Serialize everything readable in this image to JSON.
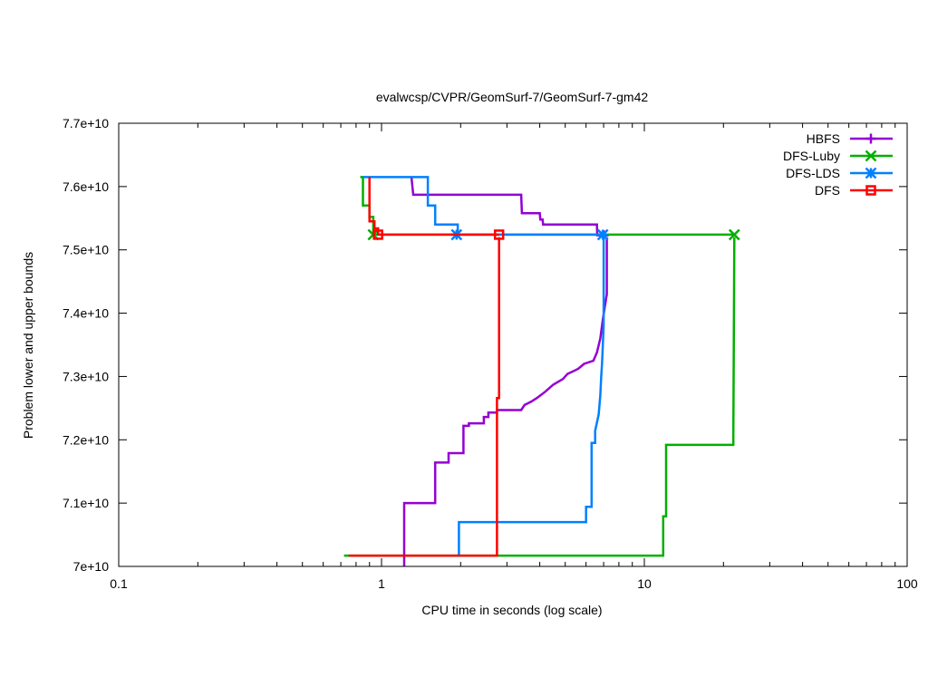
{
  "chart_data": {
    "type": "line",
    "title": "evalwcsp/CVPR/GeomSurf-7/GeomSurf-7-gm42",
    "xlabel": "CPU time in seconds (log scale)",
    "ylabel": "Problem lower and upper bounds",
    "xscale": "log",
    "xlim": [
      0.1,
      100
    ],
    "ylim": [
      70000000000,
      77000000000
    ],
    "xticks": [
      {
        "value": 0.1,
        "label": "0.1"
      },
      {
        "value": 1,
        "label": "1"
      },
      {
        "value": 10,
        "label": "10"
      },
      {
        "value": 100,
        "label": "100"
      }
    ],
    "yticks": [
      {
        "value": 70000000000,
        "label": "7e+10"
      },
      {
        "value": 71000000000,
        "label": "7.1e+10"
      },
      {
        "value": 72000000000,
        "label": "7.2e+10"
      },
      {
        "value": 73000000000,
        "label": "7.3e+10"
      },
      {
        "value": 74000000000,
        "label": "7.4e+10"
      },
      {
        "value": 75000000000,
        "label": "7.5e+10"
      },
      {
        "value": 76000000000,
        "label": "7.6e+10"
      },
      {
        "value": 77000000000,
        "label": "7.7e+10"
      }
    ],
    "legend_position": "top-right",
    "grid": false,
    "series": [
      {
        "name": "HBFS",
        "color": "#9400d3",
        "marker": "plus",
        "upper": [
          [
            1.3,
            76150000000
          ],
          [
            1.32,
            75870000000
          ],
          [
            3.4,
            75870000000
          ],
          [
            3.42,
            75580000000
          ],
          [
            4.0,
            75580000000
          ],
          [
            4.02,
            75480000000
          ],
          [
            4.1,
            75480000000
          ],
          [
            4.12,
            75400000000
          ],
          [
            6.6,
            75400000000
          ],
          [
            6.62,
            75230000000
          ],
          [
            7.0,
            75230000000
          ]
        ],
        "lower": [
          [
            1.22,
            70000000000
          ],
          [
            1.22,
            71000000000
          ],
          [
            1.6,
            71000000000
          ],
          [
            1.6,
            71640000000
          ],
          [
            1.8,
            71640000000
          ],
          [
            1.8,
            71790000000
          ],
          [
            2.05,
            71790000000
          ],
          [
            2.05,
            72220000000
          ],
          [
            2.15,
            72220000000
          ],
          [
            2.15,
            72260000000
          ],
          [
            2.45,
            72260000000
          ],
          [
            2.45,
            72360000000
          ],
          [
            2.55,
            72360000000
          ],
          [
            2.55,
            72430000000
          ],
          [
            2.75,
            72430000000
          ],
          [
            2.75,
            72470000000
          ],
          [
            3.4,
            72470000000
          ],
          [
            3.5,
            72550000000
          ],
          [
            3.7,
            72600000000
          ],
          [
            3.9,
            72660000000
          ],
          [
            4.2,
            72760000000
          ],
          [
            4.5,
            72870000000
          ],
          [
            4.9,
            72960000000
          ],
          [
            5.1,
            73040000000
          ],
          [
            5.6,
            73120000000
          ],
          [
            5.9,
            73200000000
          ],
          [
            6.4,
            73250000000
          ],
          [
            6.6,
            73380000000
          ],
          [
            6.8,
            73600000000
          ],
          [
            6.95,
            73900000000
          ],
          [
            7.1,
            74150000000
          ],
          [
            7.2,
            74300000000
          ],
          [
            7.2,
            75200000000
          ]
        ],
        "marker_points": [
          [
            7.0,
            75230000000
          ]
        ]
      },
      {
        "name": "DFS-Luby",
        "color": "#00b000",
        "marker": "cross",
        "upper": [
          [
            0.83,
            76150000000
          ],
          [
            0.85,
            76150000000
          ],
          [
            0.85,
            75700000000
          ],
          [
            0.9,
            75700000000
          ],
          [
            0.9,
            75520000000
          ],
          [
            0.93,
            75520000000
          ],
          [
            0.93,
            75240000000
          ],
          [
            22,
            75240000000
          ]
        ],
        "lower": [
          [
            0.72,
            70170000000
          ],
          [
            11.8,
            70170000000
          ],
          [
            11.8,
            70790000000
          ],
          [
            12.1,
            70790000000
          ],
          [
            12.1,
            71920000000
          ],
          [
            21.8,
            71920000000
          ],
          [
            21.8,
            72050000000
          ],
          [
            22,
            75200000000
          ]
        ],
        "marker_points": [
          [
            0.93,
            75240000000
          ],
          [
            22,
            75240000000
          ]
        ]
      },
      {
        "name": "DFS-LDS",
        "color": "#0080ff",
        "marker": "star",
        "upper": [
          [
            0.85,
            76150000000
          ],
          [
            1.5,
            76150000000
          ],
          [
            1.5,
            75700000000
          ],
          [
            1.6,
            75700000000
          ],
          [
            1.6,
            75400000000
          ],
          [
            1.95,
            75400000000
          ],
          [
            1.95,
            75240000000
          ],
          [
            7.0,
            75240000000
          ]
        ],
        "lower": [
          [
            1.97,
            70170000000
          ],
          [
            1.97,
            70700000000
          ],
          [
            6.0,
            70700000000
          ],
          [
            6.0,
            70940000000
          ],
          [
            6.3,
            70940000000
          ],
          [
            6.3,
            71950000000
          ],
          [
            6.5,
            71950000000
          ],
          [
            6.5,
            72140000000
          ],
          [
            6.7,
            72400000000
          ],
          [
            6.8,
            72700000000
          ],
          [
            6.85,
            73000000000
          ],
          [
            6.9,
            73200000000
          ],
          [
            6.95,
            73500000000
          ],
          [
            7.0,
            73800000000
          ],
          [
            7.0,
            75200000000
          ]
        ],
        "marker_points": [
          [
            1.93,
            75240000000
          ],
          [
            6.95,
            75240000000
          ]
        ]
      },
      {
        "name": "DFS",
        "color": "#ff0000",
        "marker": "square",
        "upper": [
          [
            0.9,
            76150000000
          ],
          [
            0.9,
            75450000000
          ],
          [
            0.94,
            75450000000
          ],
          [
            0.94,
            75340000000
          ],
          [
            0.97,
            75340000000
          ],
          [
            0.97,
            75240000000
          ],
          [
            2.8,
            75240000000
          ]
        ],
        "lower": [
          [
            0.75,
            70170000000
          ],
          [
            2.75,
            70170000000
          ],
          [
            2.75,
            72660000000
          ],
          [
            2.8,
            72660000000
          ],
          [
            2.8,
            75200000000
          ]
        ],
        "marker_points": [
          [
            0.97,
            75240000000
          ],
          [
            2.8,
            75240000000
          ]
        ]
      }
    ]
  }
}
